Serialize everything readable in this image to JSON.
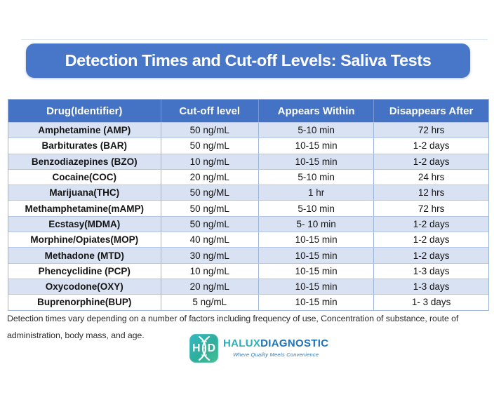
{
  "title_banner": {
    "text": "Detection Times and Cut-off Levels: Saliva Tests",
    "background": "#4876C8",
    "text_color": "#FFFFFF"
  },
  "table": {
    "headers": [
      "Drug(Identifier)",
      "Cut-off level",
      "Appears Within",
      "Disappears After"
    ],
    "header_bg": "#4472C4",
    "stripe_color": "#D9E2F3",
    "border_color": "#9EB5DA",
    "rows": [
      {
        "drug": "Amphetamine (AMP)",
        "cutoff": "50 ng/mL",
        "appears": "5-10 min",
        "disappears": "72 hrs"
      },
      {
        "drug": "Barbiturates (BAR)",
        "cutoff": "50 ng/mL",
        "appears": "10-15 min",
        "disappears": "1-2 days"
      },
      {
        "drug": "Benzodiazepines (BZO)",
        "cutoff": "10 ng/mL",
        "appears": "10-15 min",
        "disappears": "1-2 days"
      },
      {
        "drug": "Cocaine(COC)",
        "cutoff": "20 ng/mL",
        "appears": "5-10 min",
        "disappears": "24 hrs"
      },
      {
        "drug": "Marijuana(THC)",
        "cutoff": "50 ng/ML",
        "appears": "1 hr",
        "disappears": "12 hrs"
      },
      {
        "drug": "Methamphetamine(mAMP)",
        "cutoff": "50 ng/mL",
        "appears": "5-10 min",
        "disappears": "72 hrs"
      },
      {
        "drug": "Ecstasy(MDMA)",
        "cutoff": "50 ng/mL",
        "appears": "5- 10 min",
        "disappears": "1-2 days"
      },
      {
        "drug": "Morphine/Opiates(MOP)",
        "cutoff": "40 ng/mL",
        "appears": "10-15 min",
        "disappears": "1-2 days"
      },
      {
        "drug": "Methadone (MTD)",
        "cutoff": "30 ng/mL",
        "appears": "10-15 min",
        "disappears": "1-2 days"
      },
      {
        "drug": "Phencyclidine (PCP)",
        "cutoff": "10 ng/mL",
        "appears": "10-15 min",
        "disappears": "1-3 days"
      },
      {
        "drug": "Oxycodone(OXY)",
        "cutoff": "20 ng/mL",
        "appears": "10-15 min",
        "disappears": "1-3 days"
      },
      {
        "drug": "Buprenorphine(BUP)",
        "cutoff": "5 ng/mL",
        "appears": "10-15 min",
        "disappears": "1- 3 days"
      }
    ]
  },
  "footnote": {
    "line1": "Detection times vary depending on a number of factors including frequency of use, Concentration of substance, route of",
    "line2": "administration, body mass, and age."
  },
  "logo": {
    "icon_left": "H",
    "icon_right": "D",
    "brand_primary": "HALUX",
    "brand_secondary": "DIAGNOSTIC",
    "tagline": "Where Quality Meets Convenience",
    "teal": "#2AAFB8",
    "blue": "#1B74B8"
  }
}
